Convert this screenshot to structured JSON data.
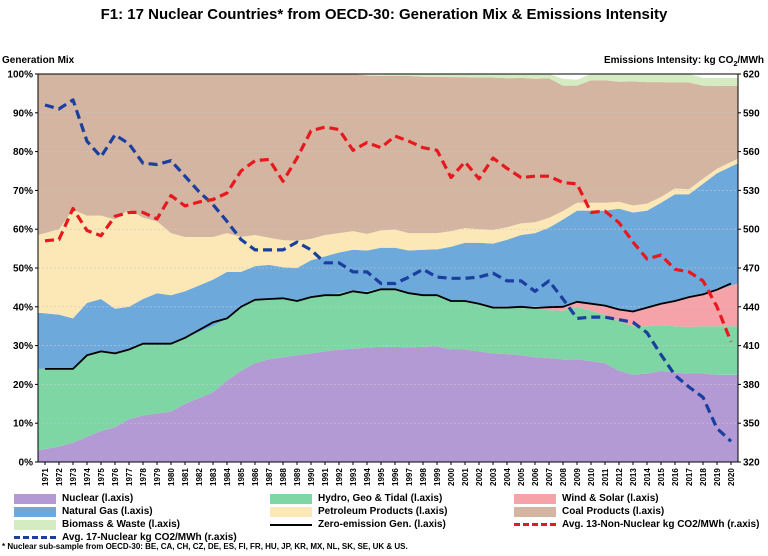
{
  "title": "F1: 17 Nuclear Countries* from OECD-30: Generation Mix & Emissions Intensity",
  "footnote": "* Nuclear sub-sample from OECD-30: BE, CA, CH, CZ, DE, ES, FI, FR, HU, JP, KR, MX, NL, SK, SE, UK & US.",
  "chart_data": {
    "type": "area",
    "years": [
      1971,
      1972,
      1973,
      1974,
      1975,
      1976,
      1977,
      1978,
      1979,
      1980,
      1981,
      1982,
      1983,
      1984,
      1985,
      1986,
      1987,
      1988,
      1989,
      1990,
      1991,
      1992,
      1993,
      1994,
      1995,
      1996,
      1997,
      1998,
      1999,
      2000,
      2001,
      2002,
      2003,
      2004,
      2005,
      2006,
      2007,
      2008,
      2009,
      2010,
      2011,
      2012,
      2013,
      2014,
      2015,
      2016,
      2017,
      2018,
      2019,
      2020
    ],
    "left_axis": {
      "title": "Generation Mix",
      "min": 0,
      "max": 100,
      "step": 10,
      "ticks": [
        "0%",
        "10%",
        "20%",
        "30%",
        "40%",
        "50%",
        "60%",
        "70%",
        "80%",
        "90%",
        "100%"
      ]
    },
    "right_axis": {
      "title_prefix": "Emissions Intensity: kg CO",
      "title_sub": "2",
      "title_suffix": "/MWh",
      "min": 320,
      "max": 620,
      "step": 30,
      "ticks": [
        "320",
        "350",
        "380",
        "410",
        "440",
        "470",
        "500",
        "530",
        "560",
        "590",
        "620"
      ]
    },
    "stacked_series": [
      {
        "name": "Nuclear (l.axis)",
        "color": "#b49ad4",
        "values": [
          3,
          4,
          5,
          6.5,
          8,
          9,
          11,
          12,
          12.5,
          13,
          15,
          16.5,
          18,
          21,
          23.5,
          25.5,
          26.5,
          27,
          27.5,
          28,
          28.5,
          29,
          29.2,
          29.5,
          29.7,
          29.7,
          29.5,
          29.7,
          29.8,
          29,
          29,
          28.5,
          28,
          27.8,
          27.5,
          27,
          26.8,
          26.5,
          26.5,
          26,
          25.5,
          23.5,
          22.5,
          22.8,
          23.5,
          23,
          22.8,
          22.8,
          22.5,
          22.5
        ]
      },
      {
        "name": "Hydro, Geo & Tidal (l.axis)",
        "color": "#7dd6a3",
        "values": [
          21,
          20,
          19,
          21,
          20.5,
          19,
          18,
          18.5,
          18,
          17.5,
          17,
          17,
          17,
          16,
          16.5,
          16.5,
          15.5,
          15.2,
          14,
          14.5,
          14.5,
          14.5,
          15,
          14.5,
          15,
          15,
          14,
          13.5,
          13,
          12.5,
          12.5,
          12,
          11.8,
          12,
          12.2,
          12.5,
          12.3,
          12.5,
          13.5,
          13,
          12.5,
          12.8,
          12.5,
          12.2,
          11.8,
          12,
          12,
          12.2,
          12.5,
          12.5
        ]
      },
      {
        "name": "Wind & Solar (l.axis)",
        "color": "#f5a3a8",
        "values": [
          0,
          0,
          0,
          0,
          0,
          0,
          0,
          0,
          0,
          0,
          0,
          0,
          0,
          0,
          0,
          0,
          0,
          0,
          0,
          0,
          0,
          0,
          0,
          0,
          0,
          0,
          0,
          0,
          0,
          0,
          0,
          0,
          0,
          0,
          0.3,
          0.5,
          0.8,
          1,
          1.3,
          1.8,
          2.3,
          3,
          3.8,
          4.8,
          5.5,
          6.5,
          7.7,
          8.2,
          9.4,
          11
        ]
      },
      {
        "name": "Natural Gas (l.axis)",
        "color": "#6ea9dc",
        "values": [
          14.5,
          14,
          13,
          13.5,
          13.5,
          11.5,
          11,
          11.5,
          13,
          12.5,
          12,
          12,
          12,
          12,
          9,
          8.5,
          8.8,
          8,
          8.5,
          9.5,
          10,
          10.5,
          10.5,
          10.5,
          10.5,
          10.5,
          11,
          11.5,
          12,
          14,
          15,
          16,
          16.5,
          17.5,
          18.5,
          19,
          20.5,
          22.5,
          23.5,
          24,
          24.5,
          26,
          25.5,
          25,
          26,
          27.5,
          26.5,
          28.5,
          30,
          31
        ]
      },
      {
        "name": "Petroleum Products (l.axis)",
        "color": "#fbe8b6",
        "values": [
          20,
          22,
          28,
          22.5,
          21.5,
          23,
          25,
          21,
          18.5,
          16,
          14,
          12.5,
          11,
          10,
          9,
          8,
          7,
          7,
          7,
          5.5,
          5.5,
          5,
          4.8,
          4.3,
          4.5,
          4.7,
          4.5,
          4.3,
          4.2,
          4,
          3.8,
          3.5,
          3.5,
          3.2,
          3,
          2.8,
          2.5,
          2.2,
          2,
          2,
          2,
          1.8,
          1.8,
          1.8,
          1.5,
          1.5,
          1.3,
          1.3,
          1.2,
          1.2
        ]
      },
      {
        "name": "Coal Products (l.axis)",
        "color": "#d4b5a1",
        "values": [
          41.5,
          40,
          35,
          36.5,
          36.5,
          37.5,
          35,
          37,
          38,
          41,
          42,
          42,
          42,
          41,
          42,
          41.5,
          42.2,
          42.8,
          43,
          42.5,
          41.5,
          41,
          40.5,
          40.8,
          39.8,
          39.6,
          40.5,
          40.3,
          40.3,
          39.7,
          38.9,
          39.1,
          39.3,
          38.4,
          37.5,
          37,
          36,
          32.3,
          30.2,
          31.6,
          31.6,
          30.9,
          32,
          31.3,
          29.6,
          27.3,
          27.5,
          24,
          21.3,
          18.7
        ]
      },
      {
        "name": "Biomass & Waste (l.axis)",
        "color": "#d5ecc2",
        "values": [
          0,
          0,
          0,
          0,
          0,
          0,
          0,
          0,
          0,
          0,
          0,
          0,
          0,
          0,
          0,
          0,
          0,
          0,
          0,
          0,
          0,
          0,
          0,
          0.2,
          0.3,
          0.5,
          0.5,
          0.7,
          0.7,
          0.8,
          0.8,
          0.9,
          0.9,
          1.1,
          1.2,
          1.2,
          1.4,
          1.8,
          1.5,
          1.6,
          1.6,
          1.9,
          1.9,
          2,
          2.1,
          2.2,
          2.2,
          2,
          2.1,
          2.1
        ]
      }
    ],
    "line_series": [
      {
        "name": "Zero-emission Gen. (l.axis)",
        "axis": "left",
        "color": "#000000",
        "dash": false,
        "values": [
          24,
          24,
          24,
          27.5,
          28.5,
          28,
          29,
          30.5,
          30.5,
          30.5,
          32,
          34,
          36,
          37,
          40,
          41.8,
          42,
          42.2,
          41.5,
          42.5,
          43,
          43,
          44,
          43.5,
          44.5,
          44.5,
          43.5,
          43,
          43,
          41.5,
          41.5,
          40.8,
          39.8,
          39.8,
          40,
          39.7,
          39.9,
          40,
          41.3,
          40.8,
          40.3,
          39.3,
          38.8,
          39.8,
          40.8,
          41.5,
          42.5,
          43.2,
          44.4,
          46
        ]
      },
      {
        "name": "Avg. 17-Nuclear kg CO2/MWh (r.axis)",
        "axis": "right",
        "color": "#1a3f9e",
        "dash": true,
        "values": [
          596,
          593,
          600,
          568,
          556,
          573,
          566,
          551,
          550,
          553,
          541,
          529,
          519,
          506,
          492,
          484,
          484,
          484,
          490,
          484,
          474,
          474,
          467,
          467,
          458,
          458,
          463,
          469,
          463,
          462,
          462,
          463,
          466,
          460,
          460,
          452,
          460,
          446,
          431,
          432,
          432,
          430,
          428,
          420,
          403,
          387,
          378,
          370,
          346,
          336
        ]
      },
      {
        "name": "Avg. 13-Non-Nuclear kg CO2/MWh (r.axis)",
        "axis": "right",
        "color": "#e8181f",
        "dash": true,
        "values": [
          491,
          492,
          516,
          499,
          495,
          510,
          513,
          513,
          508,
          526,
          518,
          521,
          523,
          528,
          545,
          553,
          554,
          537,
          555,
          576,
          579,
          577,
          561,
          567,
          563,
          572,
          568,
          563,
          561,
          540,
          552,
          539,
          555,
          547,
          540,
          541,
          541,
          536,
          535,
          513,
          514,
          505,
          490,
          477,
          480,
          469,
          467,
          460,
          440,
          413
        ]
      }
    ],
    "legend": [
      "Nuclear (l.axis)",
      "Hydro, Geo & Tidal (l.axis)",
      "Wind & Solar (l.axis)",
      "Natural Gas (l.axis)",
      "Petroleum Products (l.axis)",
      "Coal Products (l.axis)",
      "Biomass & Waste (l.axis)",
      "Zero-emission Gen. (l.axis)",
      "Avg. 13-Non-Nuclear kg CO2/MWh (r.axis)",
      "Avg. 17-Nuclear kg CO2/MWh (r.axis)"
    ]
  }
}
